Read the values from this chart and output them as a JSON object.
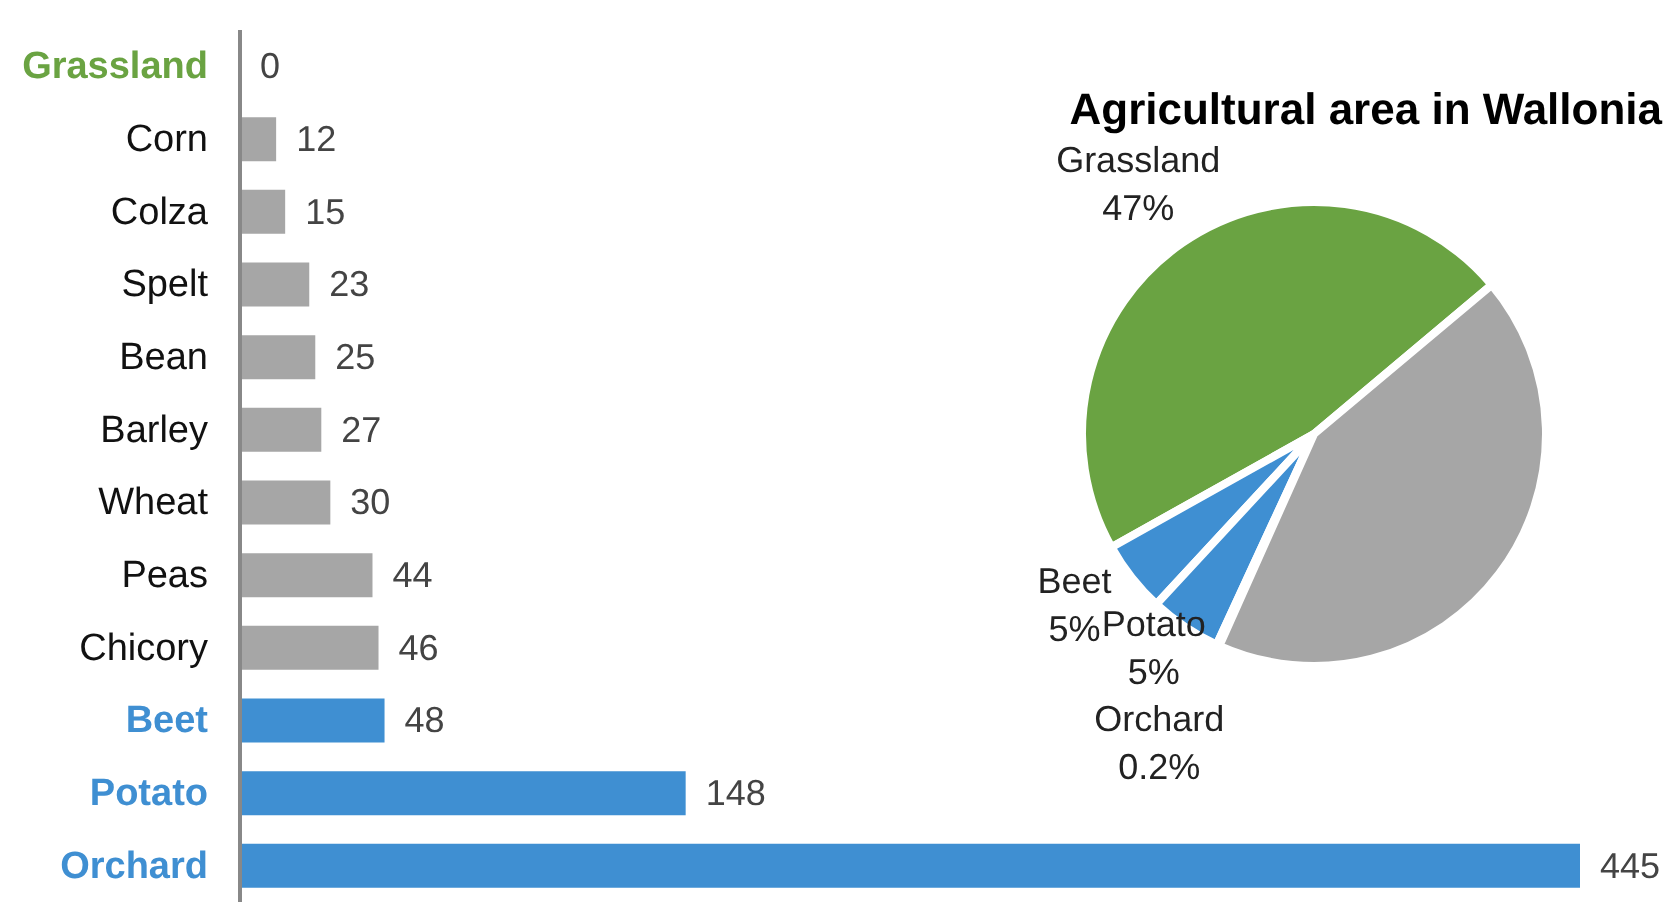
{
  "chart_data": [
    {
      "type": "bar",
      "orientation": "horizontal",
      "categories": [
        "Grassland",
        "Corn",
        "Colza",
        "Spelt",
        "Bean",
        "Barley",
        "Wheat",
        "Peas",
        "Chicory",
        "Beet",
        "Potato",
        "Orchard"
      ],
      "values": [
        0,
        12,
        15,
        23,
        25,
        27,
        30,
        44,
        46,
        48,
        148,
        445
      ],
      "colors": [
        "#6aa342",
        "#a6a6a6",
        "#a6a6a6",
        "#a6a6a6",
        "#a6a6a6",
        "#a6a6a6",
        "#a6a6a6",
        "#a6a6a6",
        "#a6a6a6",
        "#3f8fd2",
        "#3f8fd2",
        "#3f8fd2"
      ],
      "data_labels": true
    },
    {
      "type": "pie",
      "title": "Agricultural area in Wallonia",
      "categories": [
        "Grassland",
        "Beet",
        "Potato",
        "Orchard",
        null
      ],
      "values": [
        47,
        5,
        5,
        0.2,
        42.8
      ],
      "colors": [
        "#6aa342",
        "#3f8fd2",
        "#3f8fd2",
        "#3f8fd2",
        "#a6a6a6"
      ],
      "value_labels": [
        "47%",
        "5%",
        "5%",
        "0.2%",
        null
      ]
    }
  ]
}
